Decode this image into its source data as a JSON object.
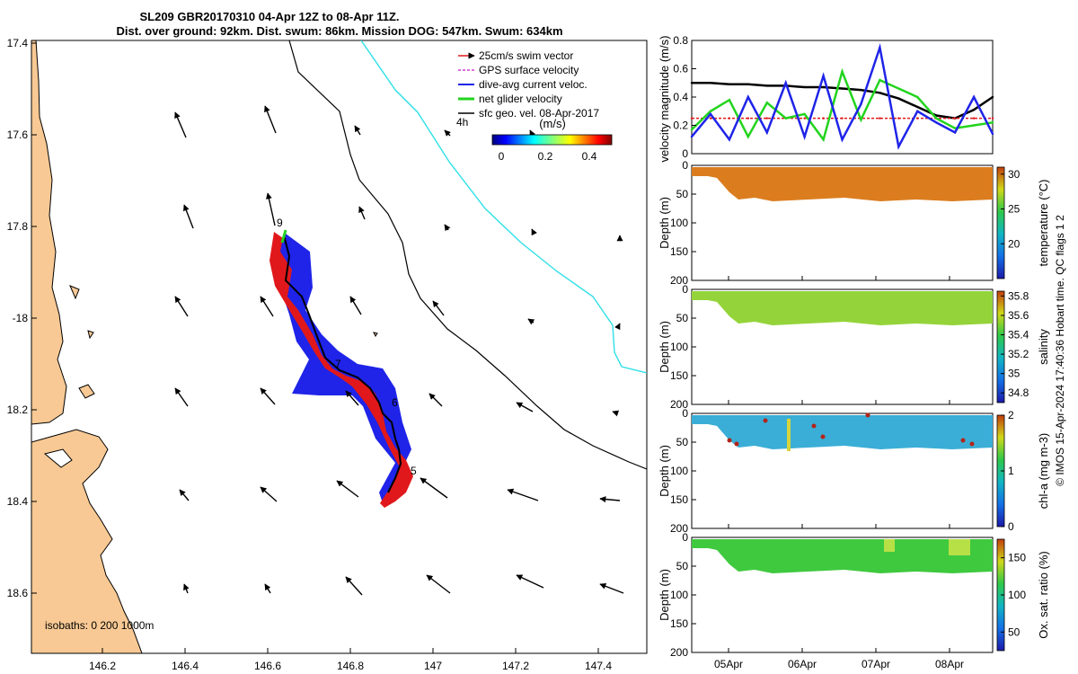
{
  "title_line1": "SL209 GBR20170310 04-Apr 12Z to 08-Apr 11Z.",
  "title_line2": "Dist. over ground: 92km. Dist. swum: 86km. Mission DOG: 547km. Swum: 634km",
  "map": {
    "lon_ticks": [
      "146.2",
      "146.4",
      "146.6",
      "146.8",
      "147",
      "147.2",
      "147.4"
    ],
    "lat_ticks": [
      "17.4",
      "17.6",
      "17.8",
      "-18",
      "18.2",
      "18.4",
      "18.6"
    ],
    "isobaths_label": "isobaths: 0   200  1000m",
    "legend": {
      "items": [
        {
          "label": "25cm/s swim vector",
          "color": "#e0181b"
        },
        {
          "label": "GPS surface velocity",
          "color": "#d43fd4"
        },
        {
          "label": "dive-avg current veloc.",
          "color": "#1f24e8"
        },
        {
          "label": "net glider velocity",
          "color": "#22d41e"
        },
        {
          "label": "sfc geo. vel. 08-Apr-2017",
          "color": "#000000"
        }
      ],
      "time_label": "4h",
      "colorbar_units": "(m/s)",
      "colorbar_ticks": [
        "0",
        "0.2",
        "0.4"
      ]
    },
    "track_labels": [
      "9",
      "7",
      "6",
      "5"
    ]
  },
  "velocity_panel": {
    "ylabel": "velocity magnitude (m/s)",
    "y_ticks": [
      "0",
      "0.2",
      "0.4",
      "0.6",
      "0.8"
    ]
  },
  "depth_panels": [
    {
      "ylabel": "Depth (m)",
      "cbar_label": "temperature (°C)",
      "cbar_ticks": [
        "20",
        "25",
        "30"
      ],
      "y_ticks": [
        "0",
        "50",
        "100",
        "150",
        "200"
      ]
    },
    {
      "ylabel": "Depth (m)",
      "cbar_label": "salinity",
      "cbar_ticks": [
        "34.8",
        "35",
        "35.2",
        "35.4",
        "35.6",
        "35.8"
      ],
      "y_ticks": [
        "0",
        "50",
        "100",
        "150",
        "200"
      ]
    },
    {
      "ylabel": "Depth (m)",
      "cbar_label": "chl-a (mg m-3)",
      "cbar_ticks": [
        "0",
        "1",
        "2"
      ],
      "y_ticks": [
        "0",
        "50",
        "100",
        "150",
        "200"
      ]
    },
    {
      "ylabel": "Depth (m)",
      "cbar_label": "Ox. sat. ratio (%)",
      "cbar_ticks": [
        "50",
        "100",
        "150"
      ],
      "y_ticks": [
        "0",
        "50",
        "100",
        "150",
        "200"
      ]
    }
  ],
  "time_ticks": [
    "05Apr",
    "06Apr",
    "07Apr",
    "08Apr"
  ],
  "footer_note": "© IMOS 15-Apr-2024 17:40:36 Hobart time. QC flags 1  2",
  "chart_data": [
    {
      "type": "scatter",
      "title": "SL209 GBR20170310 04-Apr 12Z to 08-Apr 11Z. Dist. over ground: 92km. Dist. swum: 86km. Mission DOG: 547km. Swum: 634km",
      "xlabel": "longitude",
      "ylabel": "latitude",
      "xlim": [
        146.05,
        147.46
      ],
      "ylim": [
        -18.75,
        -17.4
      ],
      "glider_track": {
        "lon": [
          146.62,
          146.64,
          146.63,
          146.66,
          146.68,
          146.7,
          146.72,
          146.73,
          146.76,
          146.79,
          146.82,
          146.84,
          146.86,
          146.86,
          146.87,
          146.88,
          146.89,
          146.87,
          146.84
        ],
        "lat": [
          -17.81,
          -17.86,
          -17.92,
          -17.96,
          -18.0,
          -18.04,
          -18.08,
          -18.12,
          -18.13,
          -18.16,
          -18.18,
          -18.2,
          -18.22,
          -18.26,
          -18.29,
          -18.32,
          -18.35,
          -18.38,
          -18.4
        ]
      },
      "waypoint_labels": [
        {
          "label": "9",
          "lon": 146.62,
          "lat": -17.79
        },
        {
          "label": "7",
          "lon": 146.74,
          "lat": -18.12
        },
        {
          "label": "6",
          "lon": 146.83,
          "lat": -18.19
        },
        {
          "label": "5",
          "lon": 146.88,
          "lat": -18.34
        }
      ],
      "legend": [
        "25cm/s swim vector",
        "GPS surface velocity",
        "dive-avg current veloc.",
        "net glider velocity",
        "sfc geo. vel. 08-Apr-2017"
      ],
      "colorbar": {
        "label": "(m/s)",
        "range": [
          0,
          0.5
        ],
        "ticks": [
          0,
          0.2,
          0.4
        ]
      },
      "isobaths_m": [
        0,
        200,
        1000
      ]
    },
    {
      "type": "line",
      "ylabel": "velocity magnitude (m/s)",
      "ylim": [
        0,
        0.8
      ],
      "x": [
        "04Apr12Z",
        "04Apr18Z",
        "05Apr00Z",
        "05Apr06Z",
        "05Apr12Z",
        "05Apr18Z",
        "06Apr00Z",
        "06Apr06Z",
        "06Apr12Z",
        "06Apr18Z",
        "07Apr00Z",
        "07Apr06Z",
        "07Apr12Z",
        "07Apr18Z",
        "08Apr00Z",
        "08Apr06Z",
        "08Apr11Z"
      ],
      "x_ticks": [
        "05Apr",
        "06Apr",
        "07Apr",
        "08Apr"
      ],
      "series": [
        {
          "name": "sfc geo. vel.",
          "color": "#000000",
          "values": [
            0.5,
            0.5,
            0.49,
            0.49,
            0.48,
            0.48,
            0.47,
            0.47,
            0.46,
            0.45,
            0.43,
            0.39,
            0.33,
            0.27,
            0.25,
            0.31,
            0.4
          ]
        },
        {
          "name": "swim speed",
          "color": "#e0181b",
          "values": [
            0.25,
            0.25,
            0.25,
            0.25,
            0.25,
            0.25,
            0.25,
            0.25,
            0.25,
            0.25,
            0.25,
            0.25,
            0.25,
            0.25,
            0.25,
            0.25,
            0.25
          ]
        },
        {
          "name": "net glider velocity",
          "color": "#22d41e",
          "values": [
            0.17,
            0.3,
            0.38,
            0.12,
            0.36,
            0.25,
            0.28,
            0.1,
            0.58,
            0.24,
            0.52,
            0.46,
            0.4,
            0.25,
            0.18,
            0.2,
            0.22
          ]
        },
        {
          "name": "dive-avg current",
          "color": "#1f24e8",
          "values": [
            0.12,
            0.28,
            0.1,
            0.4,
            0.15,
            0.5,
            0.12,
            0.55,
            0.1,
            0.35,
            0.75,
            0.05,
            0.3,
            0.22,
            0.15,
            0.4,
            0.14
          ]
        }
      ]
    },
    {
      "type": "heatmap",
      "variable": "temperature (°C)",
      "ylabel": "Depth (m)",
      "ylim": [
        200,
        0
      ],
      "clim": [
        15,
        31
      ],
      "cbar_ticks": [
        20,
        25,
        30
      ],
      "typical_value": 29.5
    },
    {
      "type": "heatmap",
      "variable": "salinity",
      "ylabel": "Depth (m)",
      "ylim": [
        200,
        0
      ],
      "clim": [
        34.7,
        35.85
      ],
      "cbar_ticks": [
        34.8,
        35.0,
        35.2,
        35.4,
        35.6,
        35.8
      ],
      "typical_value": 35.35
    },
    {
      "type": "heatmap",
      "variable": "chl-a (mg m-3)",
      "ylabel": "Depth (m)",
      "ylim": [
        200,
        0
      ],
      "clim": [
        0,
        2
      ],
      "cbar_ticks": [
        0,
        1,
        2
      ],
      "typical_value": 0.6
    },
    {
      "type": "heatmap",
      "variable": "Ox. sat. ratio (%)",
      "ylabel": "Depth (m)",
      "ylim": [
        200,
        0
      ],
      "clim": [
        25,
        175
      ],
      "cbar_ticks": [
        50,
        100,
        150
      ],
      "typical_value": 100
    }
  ]
}
